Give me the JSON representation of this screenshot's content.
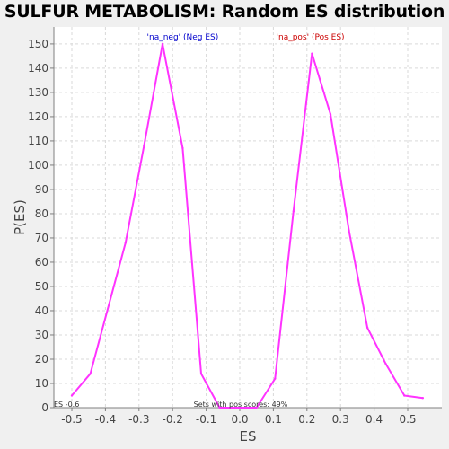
{
  "chart_data": {
    "type": "line",
    "title": "SULFUR METABOLISM: Random ES distribution",
    "xlabel": "ES",
    "ylabel": "P(ES)",
    "xlim": [
      -0.58,
      0.6
    ],
    "ylim": [
      0,
      157
    ],
    "xticks": [
      "-0.5",
      "-0.4",
      "-0.3",
      "-0.2",
      "-0.1",
      "0.0",
      "0.1",
      "0.2",
      "0.3",
      "0.4",
      "0.5"
    ],
    "xtick_values": [
      -0.5,
      -0.4,
      -0.3,
      -0.2,
      -0.1,
      0.0,
      0.1,
      0.2,
      0.3,
      0.4,
      0.5
    ],
    "yticks": [
      "0",
      "10",
      "20",
      "30",
      "40",
      "50",
      "60",
      "70",
      "80",
      "90",
      "100",
      "110",
      "120",
      "130",
      "140",
      "150"
    ],
    "ytick_values": [
      0,
      10,
      20,
      30,
      40,
      50,
      60,
      70,
      80,
      90,
      100,
      110,
      120,
      130,
      140,
      150
    ],
    "grid": true,
    "line_color": "#ff33ff",
    "series": [
      {
        "x": [
          -0.5,
          -0.445,
          -0.34,
          -0.285,
          -0.23,
          -0.17,
          -0.115,
          -0.06,
          0.0,
          0.05,
          0.105,
          0.16,
          0.215,
          0.27,
          0.325,
          0.38,
          0.435,
          0.49,
          0.545
        ],
        "y": [
          5,
          14,
          68,
          108,
          150,
          107,
          14,
          0,
          0,
          0,
          12,
          81,
          146,
          121,
          73,
          33,
          18,
          5,
          4
        ]
      }
    ],
    "annotations": [
      {
        "text": "'na_neg' (Neg ES)",
        "color": "#0000cc",
        "x": -0.17
      },
      {
        "text": "'na_pos' (Pos ES)",
        "color": "#cc0000",
        "x": 0.21
      }
    ],
    "footnote_left": "ES -0.6",
    "footnote_center": "Sets with pos scores: 49%"
  }
}
